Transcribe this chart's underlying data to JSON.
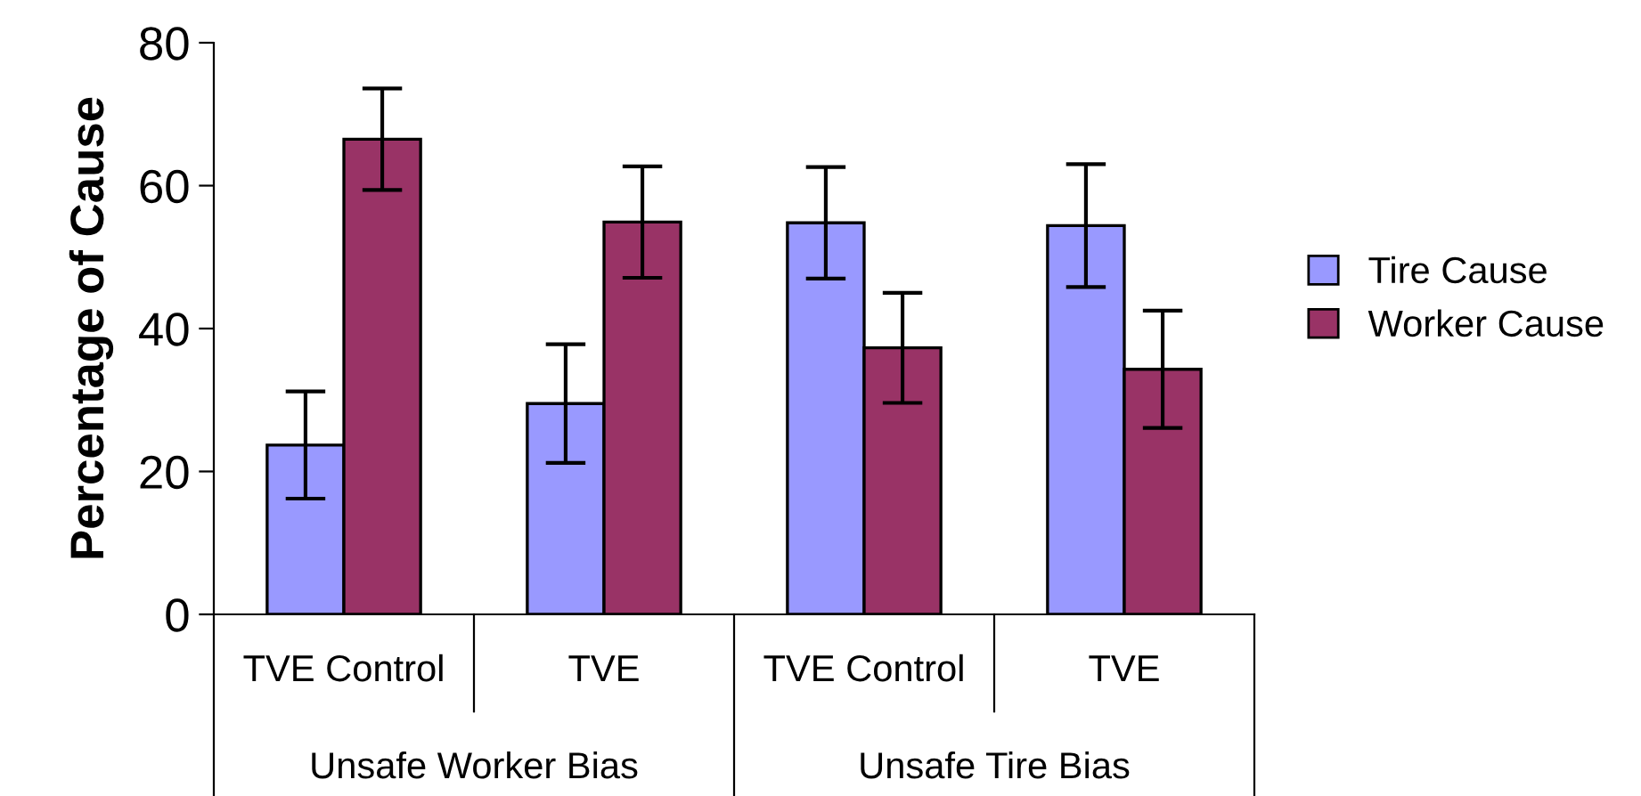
{
  "chart_data": {
    "type": "bar",
    "ylabel": "Percentage of Cause",
    "categories": [
      "TVE Control",
      "TVE",
      "TVE Control",
      "TVE"
    ],
    "annotations": [
      "Unsafe Worker Bias",
      "Unsafe Tire Bias"
    ],
    "series": [
      {
        "name": "Tire Cause",
        "color": "#9999ff",
        "values": [
          23.7,
          29.5,
          54.8,
          54.4
        ],
        "errors": [
          7.5,
          8.3,
          7.8,
          8.6
        ]
      },
      {
        "name": "Worker Cause",
        "color": "#993366",
        "values": [
          66.5,
          54.9,
          37.3,
          34.3
        ],
        "errors": [
          7.1,
          7.8,
          7.7,
          8.2
        ]
      }
    ],
    "ylim": [
      0,
      80
    ],
    "yticks": [
      0,
      20,
      40,
      60,
      80
    ],
    "grid": false,
    "legend": "right"
  }
}
